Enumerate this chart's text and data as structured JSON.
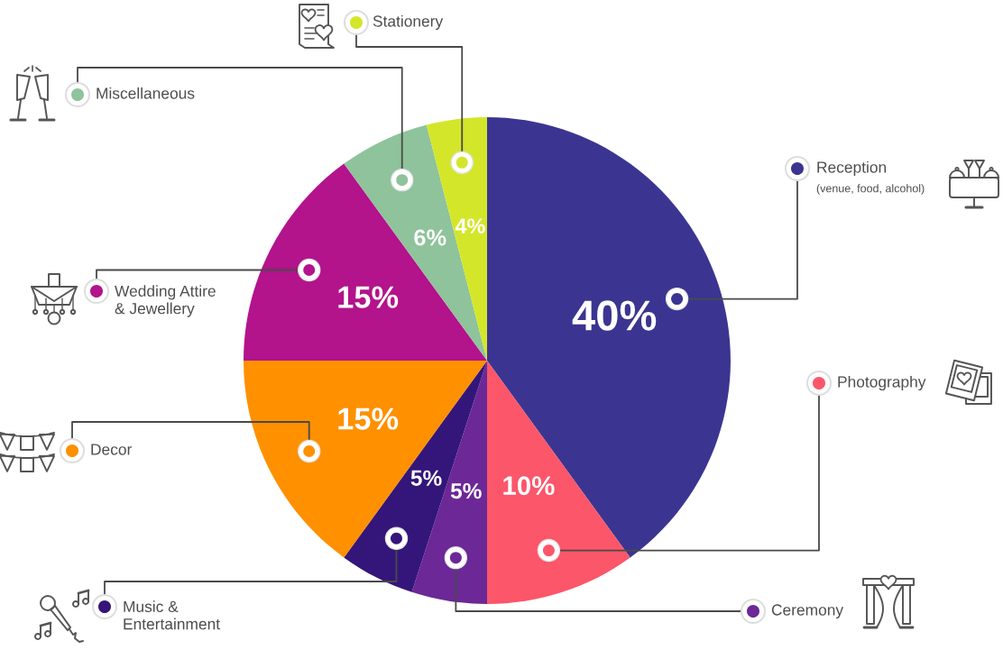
{
  "chart_data": {
    "type": "pie",
    "categories": [
      "Reception",
      "Photography",
      "Ceremony",
      "Music &\nEntertainment",
      "Decor",
      "Wedding Attire\n& Jewellery",
      "Miscellaneous",
      "Stationery"
    ],
    "values": [
      40,
      10,
      5,
      5,
      15,
      15,
      6,
      4
    ],
    "colors": [
      "#3b3591",
      "#fb566a",
      "#6c2896",
      "#34167a",
      "#ff9000",
      "#b3138b",
      "#8fc39b",
      "#d4e62a"
    ],
    "value_labels": [
      "40%",
      "10%",
      "5%",
      "5%",
      "15%",
      "15%",
      "6%",
      "4%"
    ],
    "annotations": [
      "(venue, food, alcohol)"
    ],
    "legend": "top right"
  }
}
